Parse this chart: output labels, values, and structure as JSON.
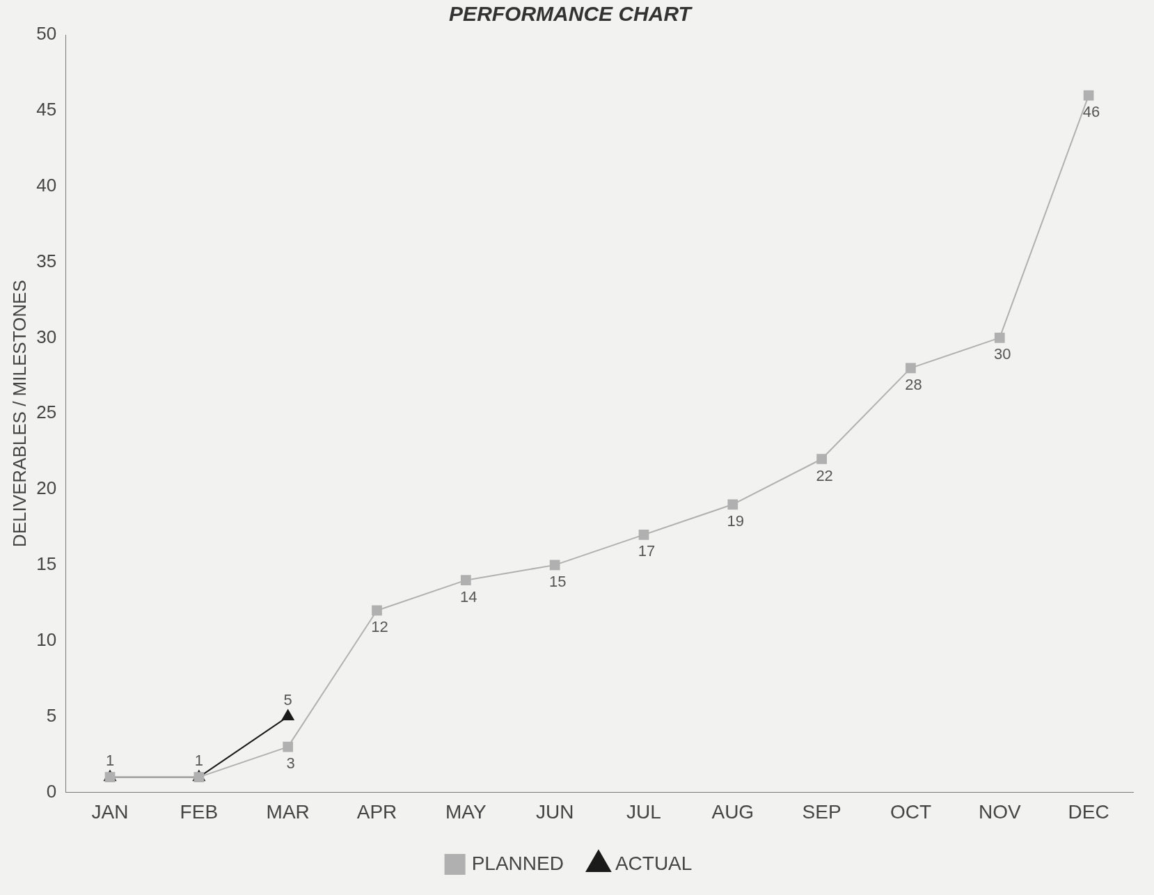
{
  "chart_data": {
    "type": "line",
    "title": "PERFORMANCE CHART",
    "ylabel": "DELIVERABLES / MILESTONES",
    "categories": [
      "JAN",
      "FEB",
      "MAR",
      "APR",
      "MAY",
      "JUN",
      "JUL",
      "AUG",
      "SEP",
      "OCT",
      "NOV",
      "DEC"
    ],
    "series": [
      {
        "name": "PLANNED",
        "color": "#b0b0b0",
        "marker": "square",
        "values": [
          1,
          1,
          3,
          12,
          14,
          15,
          17,
          19,
          22,
          28,
          30,
          46
        ],
        "value_labels": [
          null,
          null,
          "3",
          "12",
          "14",
          "15",
          "17",
          "19",
          "22",
          "28",
          "30",
          "46"
        ]
      },
      {
        "name": "ACTUAL",
        "color": "#1a1a1a",
        "marker": "triangle",
        "values": [
          1,
          1,
          5,
          null,
          null,
          null,
          null,
          null,
          null,
          null,
          null,
          null
        ],
        "value_labels": [
          "1",
          "1",
          "5",
          null,
          null,
          null,
          null,
          null,
          null,
          null,
          null,
          null
        ]
      }
    ],
    "ylim": [
      0,
      50
    ],
    "yticks": [
      0,
      5,
      10,
      15,
      20,
      25,
      30,
      35,
      40,
      45,
      50
    ],
    "grid": false,
    "legend": "bottom"
  }
}
